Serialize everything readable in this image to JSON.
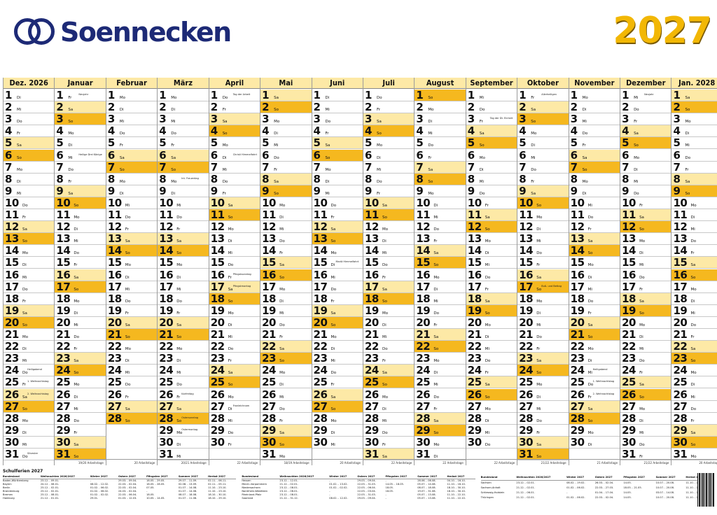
{
  "brand": {
    "name": "Soennecken",
    "color": "#1d2a76"
  },
  "year": "2027",
  "colors": {
    "saturday": "#fde9a6",
    "sunday": "#f5b81f",
    "week_number": "#e3b12f"
  },
  "months": [
    {
      "label": "Dez. 2026",
      "start_wd": 1,
      "days": 31,
      "work_days": ""
    },
    {
      "label": "Januar",
      "start_wd": 4,
      "days": 31,
      "work_days": "19/20 Arbeitstage"
    },
    {
      "label": "Februar",
      "start_wd": 0,
      "days": 28,
      "work_days": "20 Arbeitstage"
    },
    {
      "label": "März",
      "start_wd": 0,
      "days": 31,
      "work_days": "20/21 Arbeitstage"
    },
    {
      "label": "April",
      "start_wd": 3,
      "days": 30,
      "work_days": "22 Arbeitstage"
    },
    {
      "label": "Mai",
      "start_wd": 5,
      "days": 31,
      "work_days": "18/19 Arbeitstage"
    },
    {
      "label": "Juni",
      "start_wd": 1,
      "days": 30,
      "work_days": "20 Arbeitstage"
    },
    {
      "label": "Juli",
      "start_wd": 3,
      "days": 31,
      "work_days": "22 Arbeitstage"
    },
    {
      "label": "August",
      "start_wd": 6,
      "days": 31,
      "work_days": "22 Arbeitstage"
    },
    {
      "label": "September",
      "start_wd": 2,
      "days": 30,
      "work_days": "22 Arbeitstage"
    },
    {
      "label": "Oktober",
      "start_wd": 4,
      "days": 31,
      "work_days": "21/22 Arbeitstage"
    },
    {
      "label": "November",
      "start_wd": 0,
      "days": 30,
      "work_days": "21 Arbeitstage"
    },
    {
      "label": "Dezember",
      "start_wd": 2,
      "days": 31,
      "work_days": "21/22 Arbeitstage"
    },
    {
      "label": "Jan. 2028",
      "start_wd": 5,
      "days": 31,
      "work_days": "20 Arbeitstage"
    }
  ],
  "weekdays": [
    "Mo",
    "Di",
    "Mi",
    "Do",
    "Fr",
    "Sa",
    "So"
  ],
  "holidays": {
    "0-24": "Heiligabend",
    "0-25": "1. Weihnachtstag",
    "0-26": "2. Weihnachtstag",
    "0-31": "Silvester",
    "1-1": "Neujahr",
    "1-6": "Heilige Drei Könige",
    "3-8": "Int. Frauentag",
    "3-26": "Karfreitag",
    "3-28": "Ostersonntag",
    "3-29": "Ostermontag",
    "4-1": "Tag der Arbeit",
    "4-6": "Christi Himmelfahrt",
    "4-16": "Pfingstsonntag",
    "4-17": "Pfingstmontag",
    "4-27": "Fronleichnam",
    "6-15": "Mariä Himmelfahrt",
    "9-3": "Tag der Dt. Einheit",
    "9-31": "Reformationstag",
    "10-1": "Allerheiligen",
    "10-17": "Buß- und Bettag",
    "11-24": "Heiligabend",
    "11-25": "1. Weihnachtstag",
    "11-26": "2. Weihnachtstag",
    "11-31": "Silvester",
    "12-1": "Neujahr"
  },
  "school_holidays": {
    "title": "Schulferien 2027",
    "headers": [
      "Bundesland",
      "Weihnachten 2026/2027",
      "Winter 2027",
      "Ostern 2027",
      "Pfingsten 2027",
      "Sommer 2027",
      "Herbst 2027"
    ],
    "rows": [
      [
        "Baden-Württemberg",
        "23.12. - 09.01.",
        "-",
        "29.03. - 09.04.",
        "18.05. - 29.05.",
        "29.07. - 11.09.",
        "02.11. - 06.11."
      ],
      [
        "Bayern",
        "24.12. - 08.01.",
        "08.02. - 12.02.",
        "22.03. - 02.04.",
        "18.05. - 28.05.",
        "02.08. - 13.09.",
        "02.11. - 05.11."
      ],
      [
        "Berlin",
        "23.12. - 02.01.",
        "01.02. - 06.02.",
        "22.03. - 02.04.",
        "07.05.",
        "01.07. - 14.08.",
        "11.10. - 23.10."
      ],
      [
        "Brandenburg",
        "23.12. - 02.01.",
        "01.02. - 06.02.",
        "24.03. - 02.04.",
        "-",
        "01.07. - 14.08.",
        "11.10. - 23.10."
      ],
      [
        "Bremen",
        "23.12. - 08.01.",
        "01.02. - 02.02.",
        "22.03. - 06.04.",
        "18.05.",
        "08.07. - 18.08.",
        "18.10. - 30.10."
      ],
      [
        "Hamburg",
        "21.12. - 01.01.",
        "29.01.",
        "01.03. - 12.03.",
        "10.05. - 14.05.",
        "01.07. - 11.08.",
        "18.10. - 29.10."
      ],
      [
        "Hessen",
        "23.12. - 12.01.",
        "-",
        "29.03. - 09.04.",
        "-",
        "28.06. - 06.08.",
        "04.10. - 16.10."
      ],
      [
        "Meckl.-Vorpommern",
        "21.12. - 02.01.",
        "01.02. - 13.02.",
        "22.03. - 31.03.",
        "14.05. - 18.05.",
        "05.07. - 14.08.",
        "11.10. - 16.10."
      ],
      [
        "Niedersachsen",
        "23.12. - 08.01.",
        "01.02. - 02.02.",
        "22.03. - 06.04.",
        "18.05.",
        "08.07. - 18.08.",
        "18.10. - 30.10."
      ],
      [
        "Nordrhein-Westfalen",
        "23.12. - 06.01.",
        "-",
        "22.03. - 03.04.",
        "18.05.",
        "19.07. - 31.08.",
        "18.10. - 30.10."
      ],
      [
        "Rheinland-Pfalz",
        "23.12. - 08.01.",
        "-",
        "22.03. - 31.03.",
        "-",
        "05.07. - 13.08.",
        "11.10. - 22.10."
      ],
      [
        "Saarland",
        "21.12. - 31.12.",
        "08.02. - 12.02.",
        "29.03. - 09.04.",
        "-",
        "05.07. - 13.08.",
        "11.10. - 22.10."
      ],
      [
        "Sachsen",
        "23.12. - 02.01.",
        "08.02. - 19.02.",
        "26.03. - 02.04.",
        "14.05.",
        "10.07. - 20.08.",
        "11.10. - 23.10."
      ],
      [
        "Sachsen-Anhalt",
        "21.12. - 02.01.",
        "01.02. - 06.02.",
        "22.03. - 27.03.",
        "18.05. - 21.05.",
        "10.07. - 20.08.",
        "11.10. - 23.10."
      ],
      [
        "Schleswig-Holstein",
        "21.12. - 06.01.",
        "-",
        "01.04. - 17.04.",
        "14.05.",
        "03.07. - 14.08.",
        "11.10. - 23.10."
      ],
      [
        "Thüringen",
        "21.12. - 02.01.",
        "01.02. - 06.02.",
        "22.03. - 02.04.",
        "14.05.",
        "10.07. - 20.08.",
        "11.10. - 23.10."
      ]
    ]
  }
}
